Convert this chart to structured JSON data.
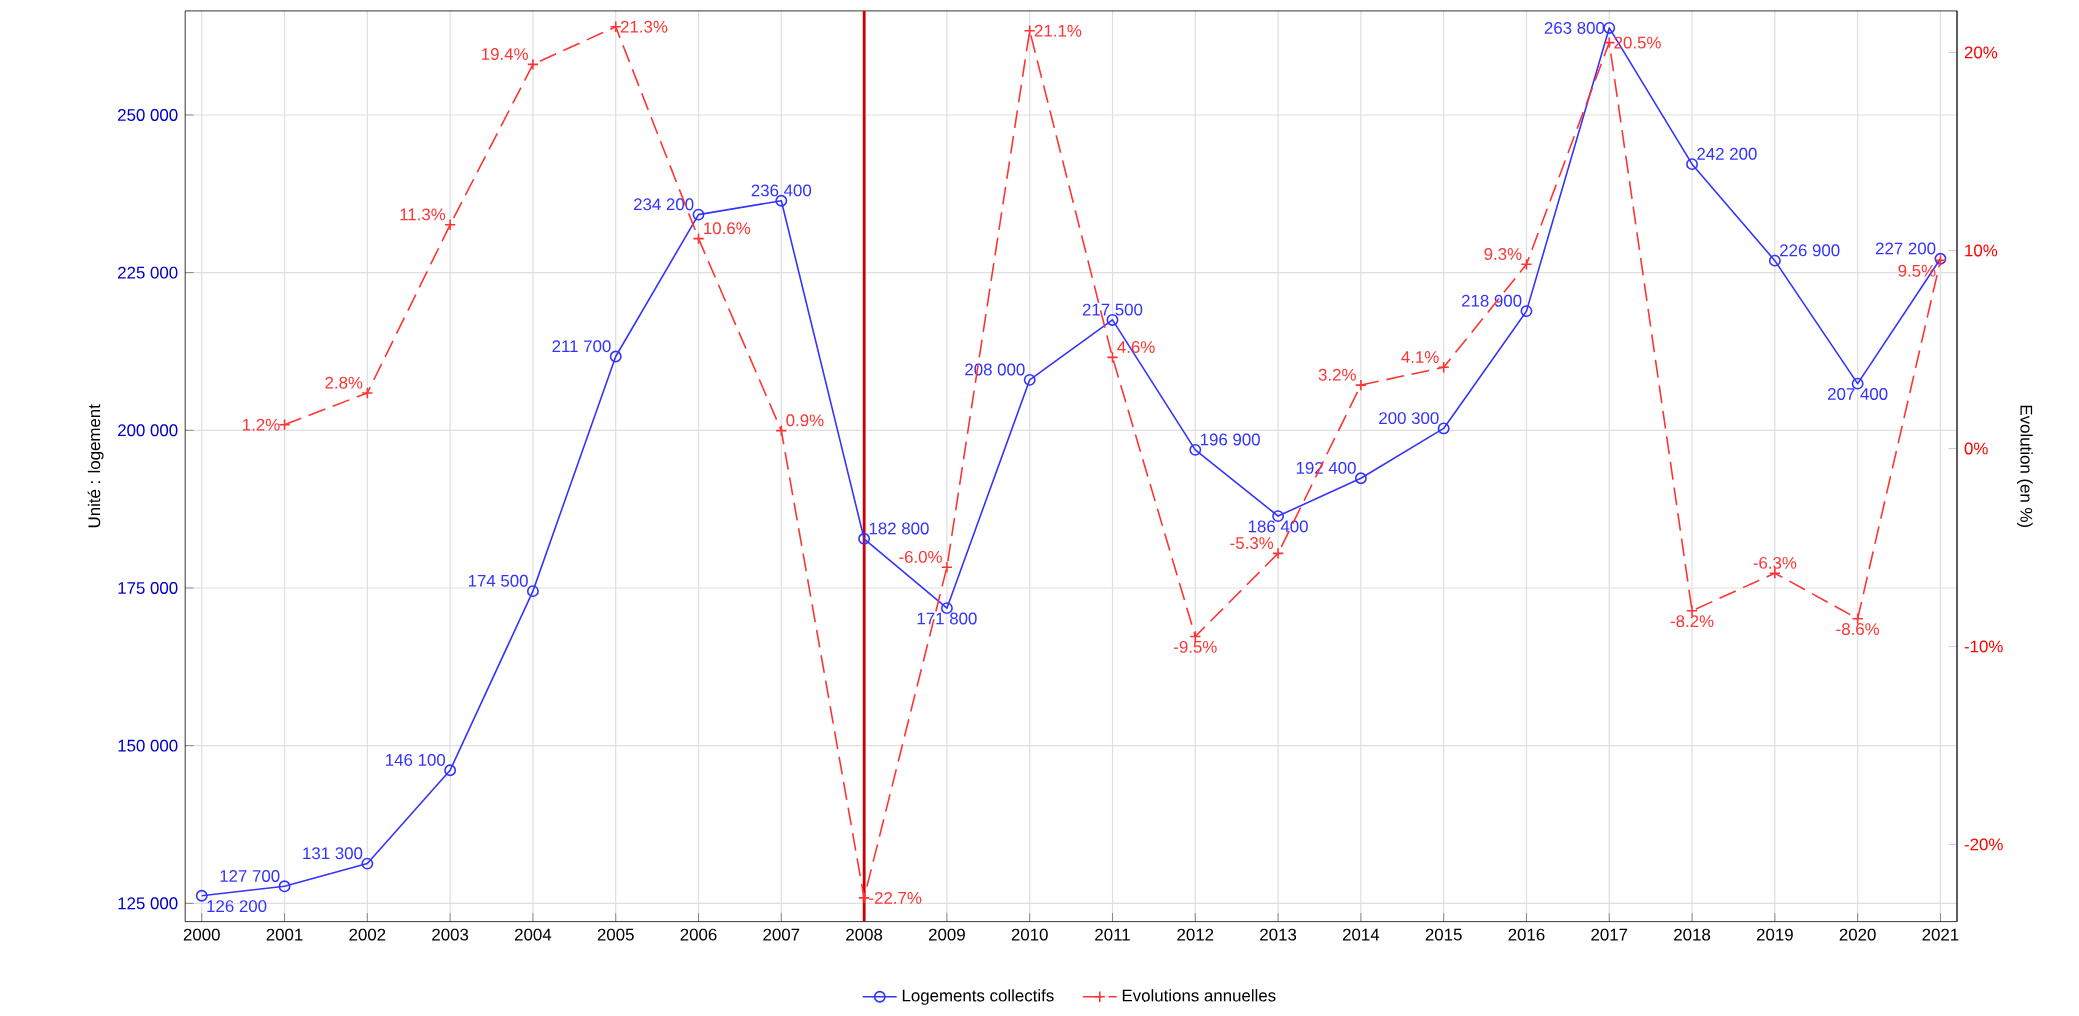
{
  "chart_data": {
    "type": "line",
    "ylabel": "Unité : logement",
    "y2label": "Evolution (en %)",
    "x": [
      2000,
      2001,
      2002,
      2003,
      2004,
      2005,
      2006,
      2007,
      2008,
      2009,
      2010,
      2011,
      2012,
      2013,
      2014,
      2015,
      2016,
      2017,
      2018,
      2019,
      2020,
      2021
    ],
    "xlim": [
      1999.8,
      2021.2
    ],
    "xticks": [
      2000,
      2001,
      2002,
      2003,
      2004,
      2005,
      2006,
      2007,
      2008,
      2009,
      2010,
      2011,
      2012,
      2013,
      2014,
      2015,
      2016,
      2017,
      2018,
      2019,
      2020,
      2021
    ],
    "ylim": [
      122100,
      266500
    ],
    "yticks": [
      {
        "value": 125000,
        "label": "125 000"
      },
      {
        "value": 150000,
        "label": "150 000"
      },
      {
        "value": 175000,
        "label": "175 000"
      },
      {
        "value": 200000,
        "label": "200 000"
      },
      {
        "value": 225000,
        "label": "225 000"
      },
      {
        "value": 250000,
        "label": "250 000"
      }
    ],
    "y2lim": [
      -23.9,
      22.1
    ],
    "y2ticks": [
      {
        "value": -20,
        "label": "-20%"
      },
      {
        "value": -10,
        "label": "-10%"
      },
      {
        "value": 0,
        "label": "0%"
      },
      {
        "value": 10,
        "label": "10%"
      },
      {
        "value": 20,
        "label": "20%"
      }
    ],
    "grid": true,
    "legend": "bottom",
    "ref_lines": [
      {
        "axis": "x",
        "value": 2008,
        "color": "#cc0000"
      }
    ],
    "series": [
      {
        "name": "Logements collectifs",
        "color": "#3333ff",
        "marker": "circle",
        "line_style": "solid",
        "values": [
          126200,
          127700,
          131300,
          146100,
          174500,
          211700,
          234200,
          236400,
          182800,
          171800,
          208000,
          217500,
          196900,
          186400,
          192400,
          200300,
          218900,
          263800,
          242200,
          226900,
          207400,
          227200
        ],
        "value_labels": [
          "126 200",
          "127 700",
          "131 300",
          "146 100",
          "174 500",
          "211 700",
          "234 200",
          "236 400",
          "182 800",
          "171 800",
          "208 000",
          "217 500",
          "196 900",
          "186 400",
          "192 400",
          "200 300",
          "218 900",
          "263 800",
          "242 200",
          "226 900",
          "207 400",
          "227 200"
        ]
      },
      {
        "name": "Evolutions annuelles",
        "color": "#ff3333",
        "marker": "cross",
        "line_style": "dashed",
        "axis": "y2",
        "values": [
          null,
          1.2,
          2.8,
          11.3,
          19.4,
          21.3,
          10.6,
          0.9,
          -22.7,
          -6.0,
          21.1,
          4.6,
          -9.5,
          -5.3,
          3.2,
          4.1,
          9.3,
          20.5,
          -8.2,
          -6.3,
          -8.6,
          9.5
        ],
        "value_labels": [
          null,
          "1.2%",
          "2.8%",
          "11.3%",
          "19.4%",
          "21.3%",
          "10.6%",
          "0.9%",
          "-22.7%",
          "-6.0%",
          "21.1%",
          "4.6%",
          "-9.5%",
          "-5.3%",
          "3.2%",
          "4.1%",
          "9.3%",
          "20.5%",
          "-8.2%",
          "-6.3%",
          "-8.6%",
          "9.5%"
        ]
      }
    ]
  }
}
